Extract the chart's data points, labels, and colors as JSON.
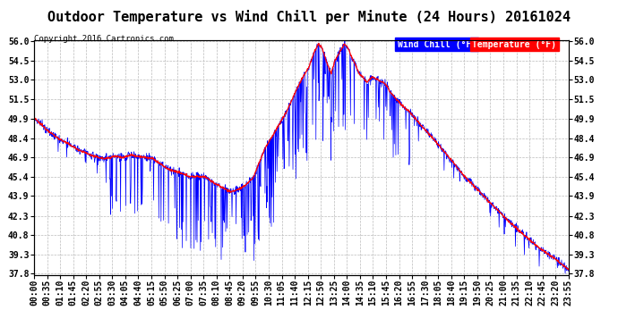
{
  "title": "Outdoor Temperature vs Wind Chill per Minute (24 Hours) 20161024",
  "copyright": "Copyright 2016 Cartronics.com",
  "ylim": [
    37.8,
    56.0
  ],
  "yticks": [
    37.8,
    39.3,
    40.8,
    42.3,
    43.9,
    45.4,
    46.9,
    48.4,
    49.9,
    51.5,
    53.0,
    54.5,
    56.0
  ],
  "temp_color": "#ff0000",
  "wind_color": "#0000ff",
  "background_color": "#ffffff",
  "grid_color": "#bbbbbb",
  "title_fontsize": 11,
  "axis_fontsize": 7,
  "n_minutes": 1440,
  "xtick_labels": [
    "00:00",
    "00:35",
    "01:10",
    "01:45",
    "02:20",
    "02:55",
    "03:30",
    "04:05",
    "04:40",
    "05:15",
    "05:50",
    "06:25",
    "07:00",
    "07:35",
    "08:10",
    "08:45",
    "09:20",
    "09:55",
    "10:30",
    "11:05",
    "11:40",
    "12:15",
    "12:50",
    "13:25",
    "14:00",
    "14:35",
    "15:10",
    "15:45",
    "16:20",
    "16:55",
    "17:30",
    "18:05",
    "18:40",
    "19:15",
    "19:50",
    "20:25",
    "21:00",
    "21:35",
    "22:10",
    "22:45",
    "23:20",
    "23:55"
  ],
  "temp_keypoints": [
    [
      0,
      50.0
    ],
    [
      30,
      49.2
    ],
    [
      60,
      48.5
    ],
    [
      90,
      48.0
    ],
    [
      120,
      47.5
    ],
    [
      160,
      47.0
    ],
    [
      190,
      46.8
    ],
    [
      220,
      47.0
    ],
    [
      240,
      46.9
    ],
    [
      260,
      47.1
    ],
    [
      280,
      47.0
    ],
    [
      320,
      46.8
    ],
    [
      360,
      46.0
    ],
    [
      420,
      45.4
    ],
    [
      460,
      45.4
    ],
    [
      490,
      44.8
    ],
    [
      530,
      44.2
    ],
    [
      560,
      44.5
    ],
    [
      590,
      45.3
    ],
    [
      620,
      47.5
    ],
    [
      650,
      49.0
    ],
    [
      680,
      50.5
    ],
    [
      700,
      51.8
    ],
    [
      720,
      53.0
    ],
    [
      740,
      54.0
    ],
    [
      755,
      55.2
    ],
    [
      765,
      55.8
    ],
    [
      775,
      55.5
    ],
    [
      790,
      54.2
    ],
    [
      800,
      53.5
    ],
    [
      810,
      54.5
    ],
    [
      820,
      55.0
    ],
    [
      835,
      55.8
    ],
    [
      845,
      55.5
    ],
    [
      855,
      54.8
    ],
    [
      865,
      54.2
    ],
    [
      875,
      53.5
    ],
    [
      885,
      53.2
    ],
    [
      895,
      52.8
    ],
    [
      910,
      53.2
    ],
    [
      925,
      53.0
    ],
    [
      940,
      52.8
    ],
    [
      950,
      52.5
    ],
    [
      960,
      52.0
    ],
    [
      975,
      51.5
    ],
    [
      990,
      51.0
    ],
    [
      1010,
      50.5
    ],
    [
      1040,
      49.5
    ],
    [
      1080,
      48.2
    ],
    [
      1120,
      46.8
    ],
    [
      1160,
      45.4
    ],
    [
      1200,
      44.2
    ],
    [
      1240,
      43.0
    ],
    [
      1280,
      41.8
    ],
    [
      1320,
      40.8
    ],
    [
      1360,
      39.8
    ],
    [
      1400,
      39.0
    ],
    [
      1430,
      38.3
    ],
    [
      1439,
      38.1
    ]
  ]
}
